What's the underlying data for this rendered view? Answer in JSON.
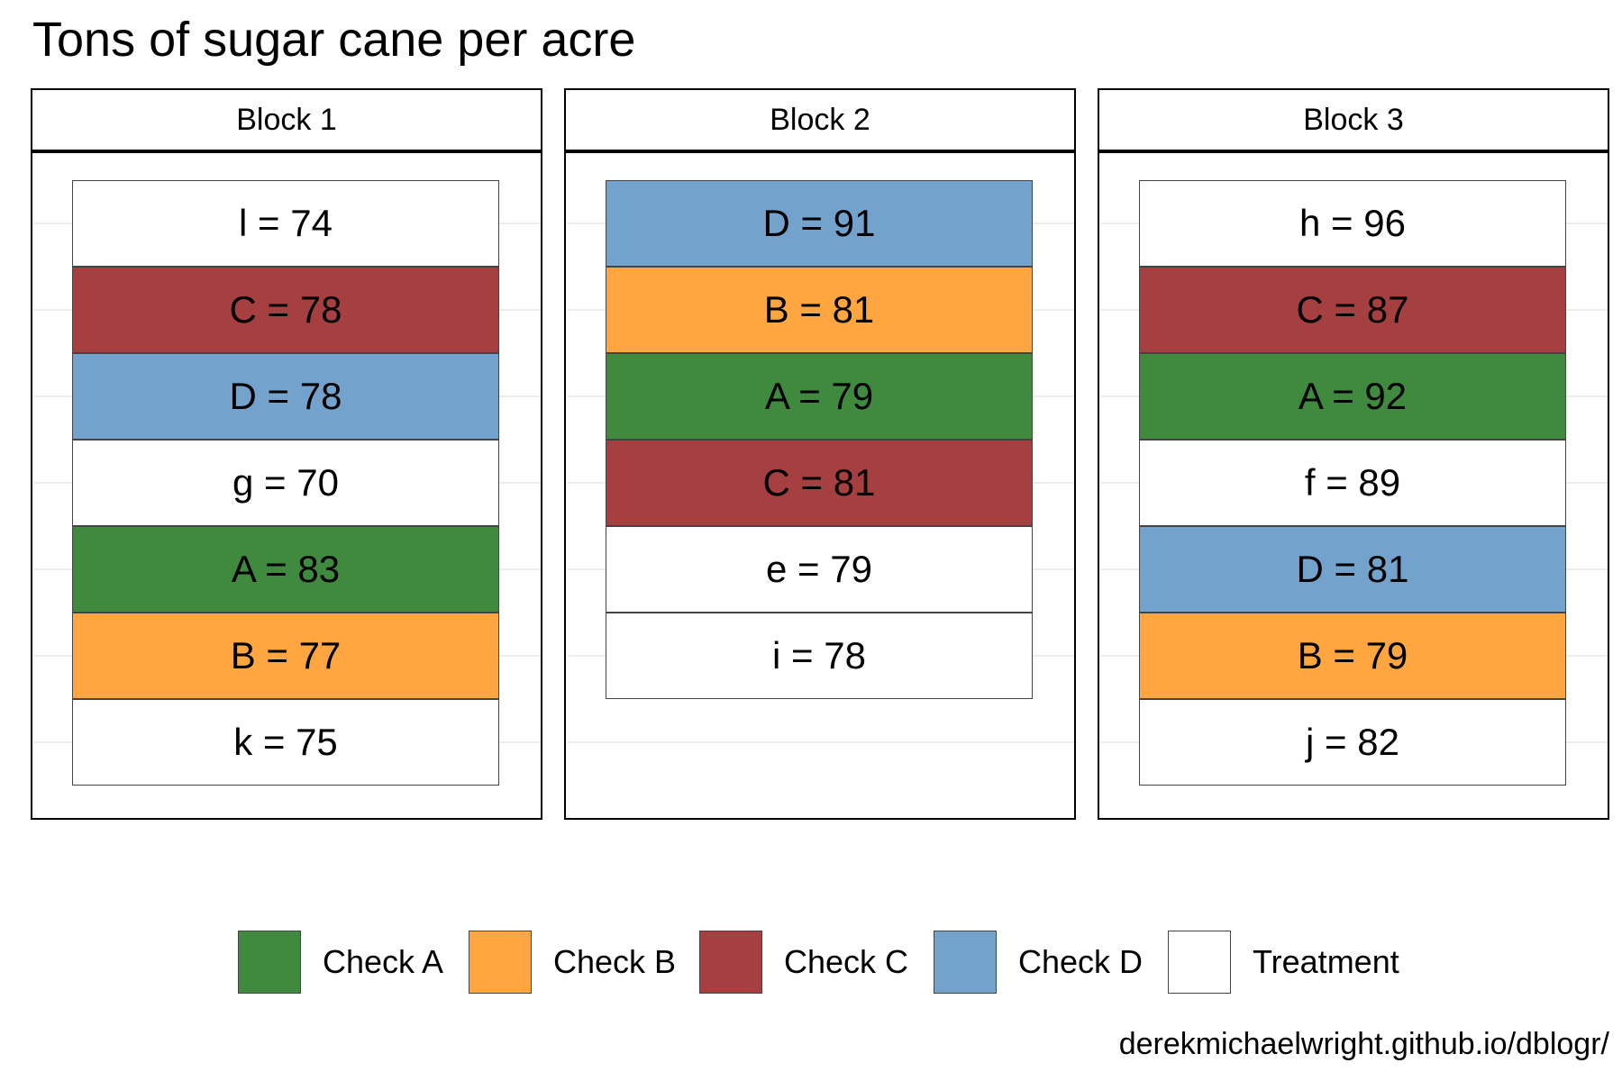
{
  "title": "Tons of sugar cane per acre",
  "caption": "derekmichaelwright.github.io/dblogr/",
  "colors": {
    "Check A": "#3f8a3f",
    "Check B": "#ffa640",
    "Check C": "#a63f3f",
    "Check D": "#73a3cc",
    "Treatment": "#ffffff"
  },
  "chart_data": {
    "type": "table",
    "title": "Tons of sugar cane per acre",
    "legend_position": "bottom",
    "grid": true,
    "panels": [
      {
        "label": "Block 1",
        "plots": [
          {
            "text": "l = 74",
            "entry": "l",
            "value": 74,
            "group": "Treatment"
          },
          {
            "text": "C = 78",
            "entry": "C",
            "value": 78,
            "group": "Check C"
          },
          {
            "text": "D = 78",
            "entry": "D",
            "value": 78,
            "group": "Check D"
          },
          {
            "text": "g = 70",
            "entry": "g",
            "value": 70,
            "group": "Treatment"
          },
          {
            "text": "A = 83",
            "entry": "A",
            "value": 83,
            "group": "Check A"
          },
          {
            "text": "B = 77",
            "entry": "B",
            "value": 77,
            "group": "Check B"
          },
          {
            "text": "k = 75",
            "entry": "k",
            "value": 75,
            "group": "Treatment"
          }
        ]
      },
      {
        "label": "Block 2",
        "plots": [
          {
            "text": "D = 91",
            "entry": "D",
            "value": 91,
            "group": "Check D"
          },
          {
            "text": "B = 81",
            "entry": "B",
            "value": 81,
            "group": "Check B"
          },
          {
            "text": "A = 79",
            "entry": "A",
            "value": 79,
            "group": "Check A"
          },
          {
            "text": "C = 81",
            "entry": "C",
            "value": 81,
            "group": "Check C"
          },
          {
            "text": "e = 79",
            "entry": "e",
            "value": 79,
            "group": "Treatment"
          },
          {
            "text": "i = 78",
            "entry": "i",
            "value": 78,
            "group": "Treatment"
          }
        ]
      },
      {
        "label": "Block 3",
        "plots": [
          {
            "text": "h = 96",
            "entry": "h",
            "value": 96,
            "group": "Treatment"
          },
          {
            "text": "C = 87",
            "entry": "C",
            "value": 87,
            "group": "Check C"
          },
          {
            "text": "A = 92",
            "entry": "A",
            "value": 92,
            "group": "Check A"
          },
          {
            "text": "f = 89",
            "entry": "f",
            "value": 89,
            "group": "Treatment"
          },
          {
            "text": "D = 81",
            "entry": "D",
            "value": 81,
            "group": "Check D"
          },
          {
            "text": "B = 79",
            "entry": "B",
            "value": 79,
            "group": "Check B"
          },
          {
            "text": "j = 82",
            "entry": "j",
            "value": 82,
            "group": "Treatment"
          }
        ]
      }
    ],
    "legend": [
      "Check A",
      "Check B",
      "Check C",
      "Check D",
      "Treatment"
    ]
  }
}
